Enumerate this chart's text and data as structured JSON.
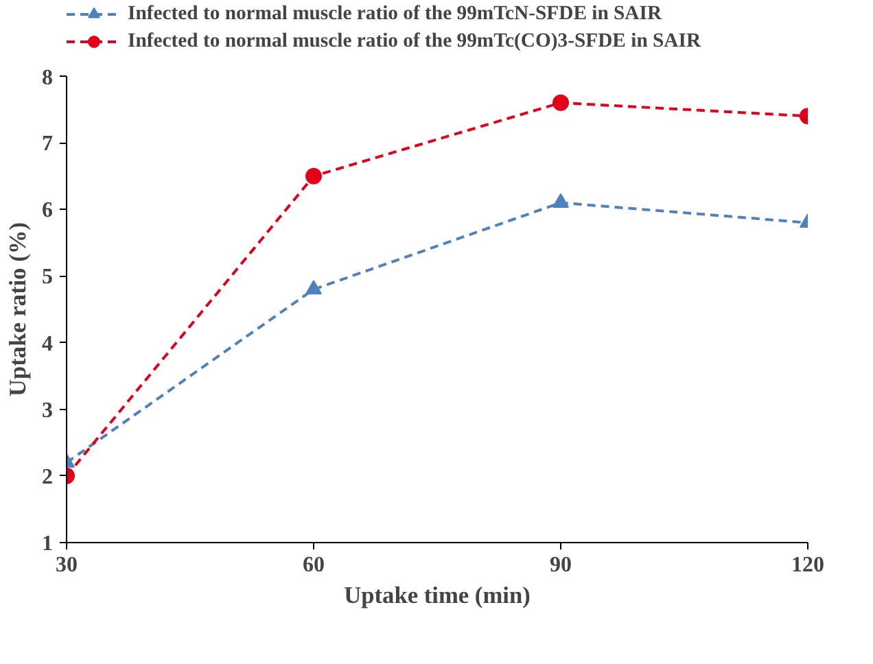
{
  "chart_data": {
    "type": "line",
    "xlabel": "Uptake time (min)",
    "ylabel": "Uptake ratio (%)",
    "x": [
      30,
      60,
      90,
      120
    ],
    "series": [
      {
        "name": "Infected to normal muscle ratio of the 99mTcN-SFDE in SAIR",
        "color": "#4f81bd",
        "values": [
          2.2,
          4.8,
          6.1,
          5.8
        ],
        "marker": "triangle"
      },
      {
        "name": "Infected to normal muscle ratio of the 99mTc(CO)3-SFDE in SAIR",
        "color": "#e3001b",
        "values": [
          2.0,
          6.5,
          7.6,
          7.4
        ],
        "marker": "circle"
      }
    ],
    "xlim": [
      30,
      120
    ],
    "xticks": [
      30,
      60,
      90,
      120
    ],
    "ylim": [
      1,
      8
    ],
    "yticks": [
      1,
      2,
      3,
      4,
      5,
      6,
      7,
      8
    ],
    "grid": false,
    "legend": "top",
    "line_style": "dashed"
  }
}
